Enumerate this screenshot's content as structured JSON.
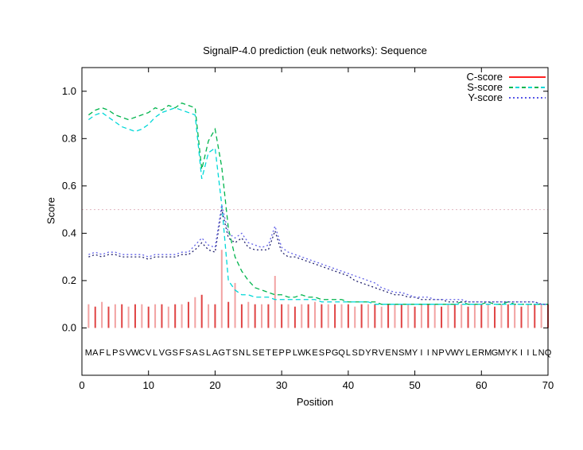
{
  "chart_data": {
    "type": "line",
    "title": "SignalP-4.0 prediction (euk networks): Sequence",
    "xlabel": "Position",
    "ylabel": "Score",
    "xlim": [
      0,
      70
    ],
    "ylim": [
      -0.2,
      1.1
    ],
    "x_ticks": [
      0,
      10,
      20,
      30,
      40,
      50,
      60,
      70
    ],
    "y_ticks": [
      0.0,
      0.2,
      0.4,
      0.6,
      0.8,
      1.0
    ],
    "y_tick_labels": [
      "0.0",
      "0.2",
      "0.4",
      "0.6",
      "0.8",
      "1.0"
    ],
    "grid": false,
    "threshold_value": 0.5,
    "threshold_color": "#e0b6c0",
    "legend_position": "top-right-inside",
    "sequence": "MAFLPSVWCVLVGSFSASLAGTSNLSETEPPLWKESPGQLSDYRVENSMYIINPVWYLERMGMYKIILNQ",
    "positions_start": 1,
    "legend": [
      {
        "label": "C-score",
        "style": "solid",
        "color": "#ff2222"
      },
      {
        "label": "S-score",
        "style": "dashed",
        "color": "#00b44c"
      },
      {
        "label": "Y-score",
        "style": "dotted",
        "color": "#5858e8"
      }
    ],
    "series": [
      {
        "name": "C-score",
        "type": "impulses",
        "color": "#e04444",
        "color_alt": "#f2a2a2",
        "values": [
          0.1,
          0.09,
          0.11,
          0.09,
          0.1,
          0.1,
          0.09,
          0.1,
          0.1,
          0.09,
          0.1,
          0.1,
          0.09,
          0.1,
          0.1,
          0.11,
          0.13,
          0.14,
          0.1,
          0.1,
          0.33,
          0.11,
          0.19,
          0.1,
          0.11,
          0.1,
          0.1,
          0.1,
          0.22,
          0.1,
          0.1,
          0.09,
          0.1,
          0.1,
          0.11,
          0.1,
          0.1,
          0.1,
          0.1,
          0.1,
          0.09,
          0.1,
          0.1,
          0.1,
          0.09,
          0.1,
          0.1,
          0.1,
          0.1,
          0.09,
          0.1,
          0.1,
          0.1,
          0.09,
          0.1,
          0.1,
          0.1,
          0.09,
          0.1,
          0.1,
          0.1,
          0.09,
          0.1,
          0.1,
          0.1,
          0.09,
          0.1,
          0.1,
          0.1,
          0.1
        ]
      },
      {
        "name": "S-score",
        "type": "line",
        "style": "dashed",
        "color": "#00b44c",
        "values": [
          0.9,
          0.92,
          0.93,
          0.92,
          0.9,
          0.89,
          0.88,
          0.89,
          0.9,
          0.91,
          0.93,
          0.92,
          0.94,
          0.93,
          0.95,
          0.94,
          0.93,
          0.67,
          0.79,
          0.84,
          0.68,
          0.42,
          0.3,
          0.24,
          0.2,
          0.17,
          0.16,
          0.15,
          0.14,
          0.14,
          0.13,
          0.13,
          0.14,
          0.13,
          0.13,
          0.12,
          0.12,
          0.12,
          0.12,
          0.11,
          0.11,
          0.11,
          0.11,
          0.11,
          0.1,
          0.1,
          0.1,
          0.1,
          0.1,
          0.1,
          0.1,
          0.1,
          0.1,
          0.1,
          0.1,
          0.1,
          0.11,
          0.1,
          0.1,
          0.1,
          0.11,
          0.1,
          0.1,
          0.11,
          0.1,
          0.1,
          0.1,
          0.1,
          0.1,
          0.1
        ]
      },
      {
        "name": "S-score-companion",
        "type": "line",
        "style": "dashed",
        "color": "#00d8d8",
        "values": [
          0.88,
          0.9,
          0.91,
          0.89,
          0.87,
          0.85,
          0.84,
          0.83,
          0.84,
          0.86,
          0.89,
          0.91,
          0.92,
          0.93,
          0.92,
          0.91,
          0.9,
          0.63,
          0.74,
          0.76,
          0.52,
          0.2,
          0.16,
          0.14,
          0.14,
          0.13,
          0.13,
          0.13,
          0.12,
          0.12,
          0.12,
          0.12,
          0.12,
          0.12,
          0.12,
          0.11,
          0.11,
          0.11,
          0.11,
          0.11,
          0.11,
          0.11,
          0.11,
          0.1,
          0.1,
          0.1,
          0.1,
          0.1,
          0.1,
          0.1,
          0.1,
          0.1,
          0.1,
          0.1,
          0.1,
          0.1,
          0.1,
          0.1,
          0.1,
          0.1,
          0.1,
          0.1,
          0.1,
          0.1,
          0.1,
          0.1,
          0.1,
          0.1,
          0.1,
          0.1
        ]
      },
      {
        "name": "Y-score",
        "type": "line",
        "style": "dotted",
        "color": "#23236e",
        "values": [
          0.3,
          0.31,
          0.3,
          0.31,
          0.31,
          0.3,
          0.3,
          0.3,
          0.3,
          0.29,
          0.3,
          0.3,
          0.3,
          0.3,
          0.31,
          0.31,
          0.33,
          0.36,
          0.33,
          0.32,
          0.5,
          0.38,
          0.36,
          0.38,
          0.34,
          0.33,
          0.33,
          0.33,
          0.41,
          0.32,
          0.3,
          0.3,
          0.29,
          0.28,
          0.27,
          0.26,
          0.25,
          0.24,
          0.23,
          0.22,
          0.2,
          0.19,
          0.18,
          0.17,
          0.16,
          0.15,
          0.14,
          0.14,
          0.13,
          0.13,
          0.12,
          0.12,
          0.12,
          0.12,
          0.11,
          0.11,
          0.11,
          0.11,
          0.11,
          0.11,
          0.11,
          0.11,
          0.11,
          0.11,
          0.11,
          0.11,
          0.11,
          0.11,
          0.1,
          0.1
        ]
      },
      {
        "name": "Y-score-companion",
        "type": "line",
        "style": "dotted",
        "color": "#6161e8",
        "values": [
          0.31,
          0.32,
          0.31,
          0.32,
          0.32,
          0.31,
          0.31,
          0.31,
          0.31,
          0.3,
          0.31,
          0.31,
          0.31,
          0.31,
          0.32,
          0.32,
          0.35,
          0.38,
          0.35,
          0.34,
          0.52,
          0.4,
          0.38,
          0.4,
          0.36,
          0.35,
          0.34,
          0.35,
          0.43,
          0.34,
          0.32,
          0.31,
          0.3,
          0.29,
          0.28,
          0.27,
          0.26,
          0.25,
          0.24,
          0.23,
          0.22,
          0.21,
          0.2,
          0.19,
          0.17,
          0.16,
          0.15,
          0.15,
          0.14,
          0.13,
          0.13,
          0.13,
          0.12,
          0.12,
          0.12,
          0.12,
          0.12,
          0.11,
          0.11,
          0.11,
          0.11,
          0.11,
          0.11,
          0.11,
          0.11,
          0.11,
          0.11,
          0.11,
          0.1,
          0.1
        ]
      }
    ]
  }
}
